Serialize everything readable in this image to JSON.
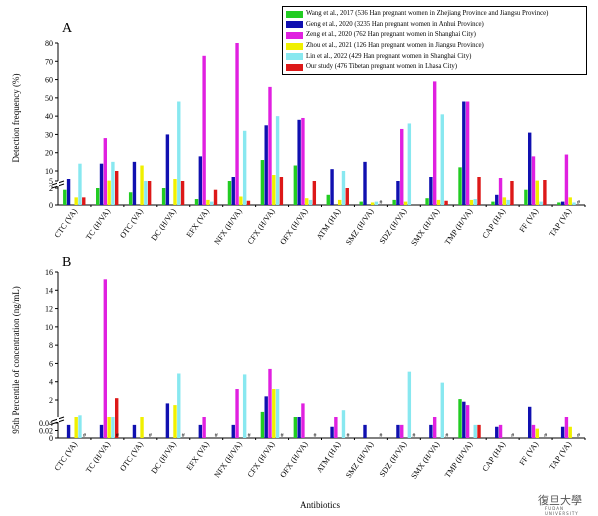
{
  "chart_data": [
    {
      "type": "bar",
      "panel": "A",
      "ylabel": "Detection frequency (%)",
      "xlabel": "",
      "yticks": [
        0,
        2,
        5,
        10,
        20,
        30,
        40,
        50,
        60,
        70,
        80
      ],
      "axis_break": [
        2,
        5
      ],
      "categories": [
        "CTC (VA)",
        "TC (H/VA)",
        "OTC (VA)",
        "DC (H/VA)",
        "EFX (VA)",
        "NFX (H/VA)",
        "CFX (H/VA)",
        "OFX (H/VA)",
        "ATM (HA)",
        "SMZ (H/VA)",
        "SDZ (H/VA)",
        "SMX (H/VA)",
        "TMP (H/VA)",
        "CAP (HA)",
        "FF (VA)",
        "TAP (VA)"
      ],
      "series": [
        {
          "name": "Wang et al., 2017 (536 Han pregnant women in Zhejiang Province and Jiangsu Province)",
          "color": "#22cc22",
          "values": [
            1.8,
            2.0,
            1.5,
            2.0,
            0.7,
            2.2,
            16,
            13,
            1.2,
            0.4,
            0.6,
            0.8,
            12,
            0.4,
            1.8,
            0.3
          ]
        },
        {
          "name": "Geng et al., 2020 (3235 Han pregnant women in Anhui Province)",
          "color": "#1010b0",
          "values": [
            6,
            14,
            15,
            30,
            18,
            7,
            35,
            38,
            11,
            15,
            3,
            7,
            48,
            1.2,
            31,
            0.4
          ]
        },
        {
          "name": "Zeng et al., 2020 (762 Han pregnant women in Shanghai City)",
          "color": "#e020e0",
          "values": [
            null,
            28,
            null,
            null,
            73,
            83,
            56,
            39,
            null,
            null,
            33,
            59,
            48,
            6.5,
            18,
            19
          ]
        },
        {
          "name": "Zhou et al., 2021 (126 Han pregnant women in Jiangsu Province)",
          "color": "#f0f000",
          "values": [
            0.9,
            5.2,
            13,
            6,
            0.6,
            1.0,
            8,
            0.8,
            0.6,
            0.3,
            0.4,
            0.6,
            0.6,
            0.9,
            5.2,
            0.9
          ]
        },
        {
          "name": "Lin et al., 2022 (429 Han pregnant women in Shanghai City)",
          "color": "#88e8f0",
          "values": [
            14,
            15,
            5,
            48,
            0.4,
            32,
            40,
            0.6,
            10,
            0.4,
            36,
            41,
            0.7,
            0.6,
            0.4,
            0.3
          ]
        },
        {
          "name": "Our study (476 Tibetan pregnant women in Lhasa City)",
          "color": "#dd1818",
          "values": [
            0.9,
            10,
            5,
            5,
            1.8,
            0.5,
            7,
            5,
            2.0,
            null,
            null,
            0.5,
            7,
            4.5,
            5.5,
            null
          ]
        }
      ],
      "hash_marks": [
        "SMZ (H/VA)",
        "TAP (VA)"
      ]
    },
    {
      "type": "bar",
      "panel": "B",
      "ylabel": "95th Percentile of concentration (ng/mL)",
      "xlabel": "Antibiotics",
      "yticks": [
        0,
        0.02,
        0.04,
        2,
        4,
        6,
        8,
        10,
        12,
        14,
        16
      ],
      "axis_break": [
        0.04,
        1.0
      ],
      "categories": [
        "CTC (VA)",
        "TC (H/VA)",
        "OTC (VA)",
        "DC (H/VA)",
        "EFX (VA)",
        "NFX (H/VA)",
        "CFX (H/VA)",
        "OFX (H/VA)",
        "ATM (HA)",
        "SMZ (H/VA)",
        "SDZ (H/VA)",
        "SMX (H/VA)",
        "TMP (H/VA)",
        "CAP (HA)",
        "FF (VA)",
        "TAP (VA)"
      ],
      "series": [
        {
          "name": "Wang et al., 2017",
          "color": "#22cc22",
          "values": [
            null,
            null,
            null,
            null,
            null,
            null,
            1.3,
            0.6,
            null,
            null,
            null,
            null,
            2.1,
            null,
            null,
            null
          ]
        },
        {
          "name": "Geng et al., 2020",
          "color": "#1010b0",
          "values": [
            0.035,
            0.035,
            0.035,
            1.8,
            0.035,
            0.035,
            2.4,
            0.5,
            0.03,
            0.035,
            0.035,
            0.035,
            1.9,
            0.03,
            1.6,
            0.03
          ]
        },
        {
          "name": "Zeng et al., 2020",
          "color": "#e020e0",
          "values": [
            null,
            15.2,
            null,
            null,
            0.4,
            3.2,
            5.4,
            1.8,
            0.3,
            null,
            0.035,
            0.8,
            1.7,
            0.035,
            0.035,
            0.4
          ]
        },
        {
          "name": "Zhou et al., 2021",
          "color": "#f0f000",
          "values": [
            0.4,
            0.4,
            0.4,
            1.7,
            null,
            null,
            3.2,
            null,
            null,
            null,
            null,
            null,
            null,
            null,
            0.025,
            0.03
          ]
        },
        {
          "name": "Lin et al., 2022",
          "color": "#88e8f0",
          "values": [
            1.1,
            0.4,
            null,
            4.9,
            null,
            4.8,
            3.2,
            null,
            1.4,
            null,
            5.1,
            3.9,
            0.035,
            null,
            null,
            null
          ]
        },
        {
          "name": "Our study",
          "color": "#dd1818",
          "values": [
            null,
            2.2,
            null,
            null,
            null,
            null,
            null,
            null,
            null,
            null,
            null,
            null,
            0.035,
            null,
            null,
            null
          ]
        }
      ],
      "hash_marks": [
        "CTC (VA)",
        "TC (H/VA)",
        "OTC (VA)",
        "DC (H/VA)",
        "EFX (VA)",
        "NFX (H/VA)",
        "CFX (H/VA)",
        "OFX (H/VA)",
        "ATM (HA)",
        "SMZ (H/VA)",
        "SDZ (H/VA)",
        "SMX (H/VA)",
        "CAP (HA)",
        "FF (VA)",
        "TAP (VA)"
      ]
    }
  ],
  "legend": [
    {
      "label": "Wang et al., 2017 (536 Han pregnant women in Zhejiang Province and Jiangsu Province)",
      "color": "#22cc22"
    },
    {
      "label": "Geng et al., 2020 (3235 Han pregnant women in Anhui Province)",
      "color": "#1010b0"
    },
    {
      "label": "Zeng et al., 2020 (762 Han pregnant women in Shanghai City)",
      "color": "#e020e0"
    },
    {
      "label": "Zhou et al., 2021 (126 Han pregnant women in Jiangsu Province)",
      "color": "#f0f000"
    },
    {
      "label": "Lin et al., 2022 (429 Han pregnant women in Shanghai City)",
      "color": "#88e8f0"
    },
    {
      "label": "Our study (476 Tibetan pregnant women in Lhasa City)",
      "color": "#dd1818"
    }
  ],
  "panels": {
    "a": "A",
    "b": "B"
  },
  "watermark": {
    "text": "復旦大學",
    "sub": "FUDAN UNIVERSITY"
  }
}
